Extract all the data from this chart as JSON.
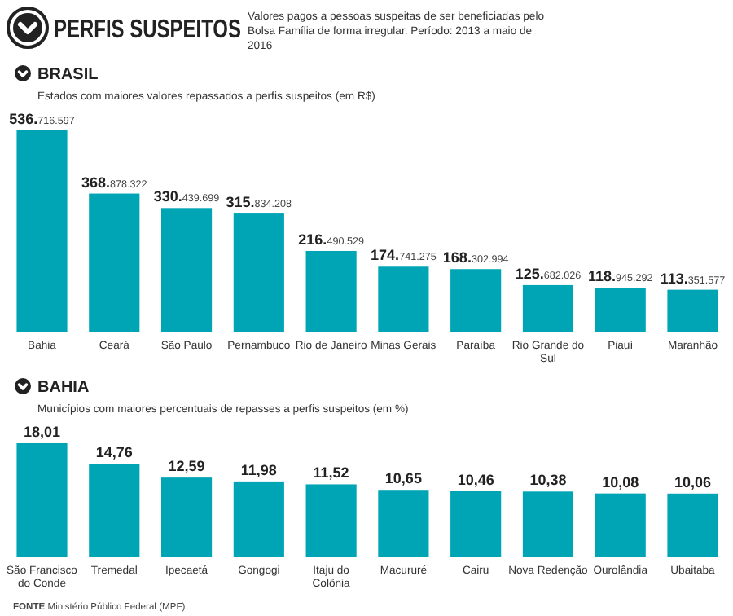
{
  "chart_data": [
    {
      "type": "other",
      "title": "PERFIS SUSPEITOS",
      "subtitle": "Valores pagos a pessoas suspeitas de ser beneficiadas pelo Bolsa Família de forma irregular. Período: 2013 a maio de 2016"
    },
    {
      "type": "bar",
      "title": "BRASIL",
      "subtitle": "Estados com maiores valores repassados a perfis suspeitos (em R$)",
      "categories": [
        "Bahia",
        "Ceará",
        "São Paulo",
        "Pernambuco",
        "Rio de Janeiro",
        "Minas Gerais",
        "Paraíba",
        "Rio Grande do Sul",
        "Piauí",
        "Maranhão"
      ],
      "values": [
        536716597,
        368878322,
        330439699,
        315834208,
        216490529,
        174741275,
        168302994,
        125682026,
        118945292,
        113351577
      ],
      "value_labels": [
        "536.716.597",
        "368.878.322",
        "330.439.699",
        "315.834.208",
        "216.490.529",
        "174.741.275",
        "168.302.994",
        "125.682.026",
        "118.945.292",
        "113.351.577"
      ],
      "color": "#00a5b5"
    },
    {
      "type": "bar",
      "title": "BAHIA",
      "subtitle": "Municípios com maiores percentuais de repasses a perfis suspeitos (em %)",
      "categories": [
        "São Francisco do Conde",
        "Tremedal",
        "Ipecaetá",
        "Gongogi",
        "Itaju do Colônia",
        "Macururé",
        "Cairu",
        "Nova Redenção",
        "Ourolândia",
        "Ubaitaba"
      ],
      "values": [
        18.01,
        14.76,
        12.59,
        11.98,
        11.52,
        10.65,
        10.46,
        10.38,
        10.08,
        10.06
      ],
      "value_labels": [
        "18,01",
        "14,76",
        "12,59",
        "11,98",
        "11,52",
        "10,65",
        "10,46",
        "10,38",
        "10,08",
        "10,06"
      ],
      "color": "#00a5b5",
      "annotations": [
        "FONTE Ministério Público Federal (MPF)"
      ]
    }
  ]
}
